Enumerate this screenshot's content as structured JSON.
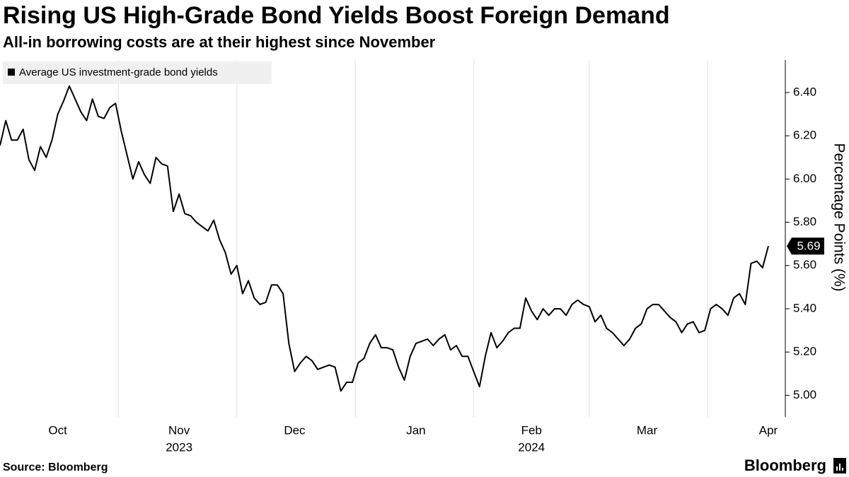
{
  "chart_data": {
    "type": "line",
    "title": "Rising US High-Grade Bond Yields Boost Foreign Demand",
    "subtitle": "All-in borrowing costs are at their highest since November",
    "y_axis_label": "Percentage Points (%)",
    "source": "Source: Bloomberg",
    "brand": "Bloomberg",
    "categories": [
      null,
      null,
      null,
      null,
      null,
      null,
      null,
      null,
      null,
      null,
      "Oct",
      null,
      null,
      null,
      null,
      null,
      null,
      null,
      null,
      null,
      null,
      null,
      null,
      null,
      null,
      null,
      null,
      null,
      null,
      null,
      null,
      "Nov",
      null,
      null,
      null,
      null,
      null,
      null,
      null,
      null,
      null,
      null,
      null,
      null,
      null,
      null,
      null,
      null,
      null,
      null,
      null,
      "Dec",
      null,
      null,
      null,
      null,
      null,
      null,
      null,
      null,
      null,
      null,
      null,
      null,
      null,
      null,
      null,
      null,
      null,
      null,
      null,
      null,
      "Jan",
      null,
      null,
      null,
      null,
      null,
      null,
      null,
      null,
      null,
      null,
      null,
      null,
      null,
      null,
      null,
      null,
      null,
      null,
      null,
      "Feb",
      null,
      null,
      null,
      null,
      null,
      null,
      null,
      null,
      null,
      null,
      null,
      null,
      null,
      null,
      null,
      null,
      null,
      null,
      null,
      "Mar",
      null,
      null,
      null,
      null,
      null,
      null,
      null,
      null,
      null,
      null,
      null,
      null,
      null,
      null,
      null,
      null,
      null,
      null,
      null,
      null,
      "Apr"
    ],
    "category_years": [
      null,
      null,
      null,
      null,
      null,
      null,
      null,
      null,
      null,
      null,
      null,
      null,
      null,
      null,
      null,
      null,
      null,
      null,
      null,
      null,
      null,
      null,
      null,
      null,
      null,
      null,
      null,
      null,
      null,
      null,
      null,
      "2023",
      null,
      null,
      null,
      null,
      null,
      null,
      null,
      null,
      null,
      null,
      null,
      null,
      null,
      null,
      null,
      null,
      null,
      null,
      null,
      null,
      null,
      null,
      null,
      null,
      null,
      null,
      null,
      null,
      null,
      null,
      null,
      null,
      null,
      null,
      null,
      null,
      null,
      null,
      null,
      null,
      null,
      null,
      null,
      null,
      null,
      null,
      null,
      null,
      null,
      null,
      null,
      null,
      null,
      null,
      null,
      null,
      null,
      null,
      null,
      null,
      "2024",
      null,
      null,
      null,
      null,
      null,
      null,
      null,
      null,
      null,
      null,
      null,
      null,
      null,
      null,
      null,
      null,
      null,
      null,
      null,
      null,
      null,
      null,
      null,
      null,
      null,
      null,
      null,
      null,
      null,
      null,
      null,
      null,
      null,
      null,
      null,
      null,
      null,
      null,
      null,
      null
    ],
    "series": [
      {
        "name": "Average US investment-grade bond yields",
        "color": "#000000",
        "values": [
          6.155,
          6.27,
          6.18,
          6.18,
          6.23,
          6.09,
          6.04,
          6.15,
          6.1,
          6.18,
          6.3,
          6.36,
          6.43,
          6.37,
          6.31,
          6.27,
          6.37,
          6.29,
          6.28,
          6.33,
          6.35,
          6.22,
          6.11,
          6.0,
          6.08,
          6.02,
          5.98,
          6.1,
          6.07,
          6.06,
          5.85,
          5.93,
          5.84,
          5.83,
          5.8,
          5.78,
          5.76,
          5.81,
          5.72,
          5.66,
          5.56,
          5.6,
          5.47,
          5.53,
          5.45,
          5.42,
          5.43,
          5.51,
          5.51,
          5.47,
          5.24,
          5.11,
          5.15,
          5.18,
          5.16,
          5.12,
          5.13,
          5.14,
          5.13,
          5.02,
          5.06,
          5.06,
          5.15,
          5.17,
          5.24,
          5.28,
          5.22,
          5.22,
          5.21,
          5.13,
          5.07,
          5.18,
          5.24,
          5.25,
          5.26,
          5.23,
          5.26,
          5.28,
          5.21,
          5.23,
          5.18,
          5.18,
          5.11,
          5.04,
          5.18,
          5.29,
          5.22,
          5.25,
          5.29,
          5.31,
          5.31,
          5.45,
          5.39,
          5.35,
          5.4,
          5.37,
          5.4,
          5.4,
          5.37,
          5.42,
          5.44,
          5.42,
          5.41,
          5.34,
          5.37,
          5.31,
          5.29,
          5.26,
          5.23,
          5.26,
          5.31,
          5.33,
          5.4,
          5.42,
          5.42,
          5.39,
          5.36,
          5.34,
          5.29,
          5.33,
          5.34,
          5.29,
          5.3,
          5.4,
          5.42,
          5.4,
          5.37,
          5.45,
          5.47,
          5.42,
          5.61,
          5.62,
          5.59,
          5.69
        ]
      }
    ],
    "ylim": [
      4.9,
      6.55
    ],
    "yticks": [
      {
        "value": 5.0,
        "label": "5.00"
      },
      {
        "value": 5.2,
        "label": "5.20"
      },
      {
        "value": 5.4,
        "label": "5.40"
      },
      {
        "value": 5.6,
        "label": "5.60"
      },
      {
        "value": 5.8,
        "label": "5.80"
      },
      {
        "value": 6.0,
        "label": "6.00"
      },
      {
        "value": 6.2,
        "label": "6.20"
      },
      {
        "value": 6.4,
        "label": "6.40"
      }
    ],
    "y_axis_side": "right",
    "legend": "top-left",
    "last_value_marker": true
  }
}
